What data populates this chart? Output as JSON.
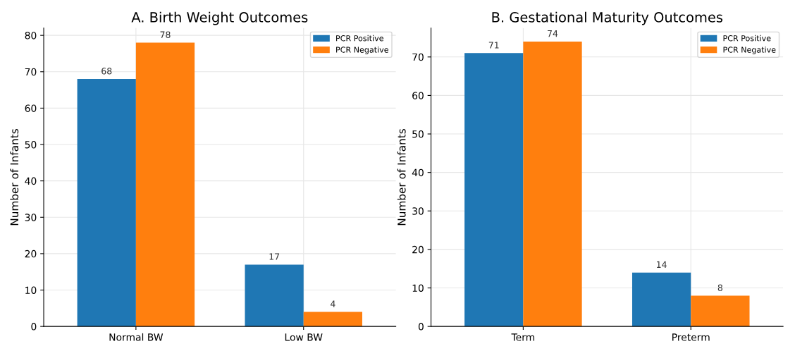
{
  "chart_data": [
    {
      "type": "bar",
      "title": "A. Birth Weight Outcomes",
      "ylabel": "Number of Infants",
      "categories": [
        "Normal BW",
        "Low BW"
      ],
      "series": [
        {
          "name": "PCR Positive",
          "color": "#1f77b4",
          "values": [
            68,
            17
          ]
        },
        {
          "name": "PCR Negative",
          "color": "#ff7f0e",
          "values": [
            78,
            4
          ]
        }
      ],
      "ylim": [
        0,
        82
      ],
      "yticks": [
        0,
        10,
        20,
        30,
        40,
        50,
        60,
        70,
        80
      ],
      "grid": true,
      "legend": "top right",
      "data_labels": true
    },
    {
      "type": "bar",
      "title": "B. Gestational Maturity Outcomes",
      "ylabel": "Number of Infants",
      "categories": [
        "Term",
        "Preterm"
      ],
      "series": [
        {
          "name": "PCR Positive",
          "color": "#1f77b4",
          "values": [
            71,
            14
          ]
        },
        {
          "name": "PCR Negative",
          "color": "#ff7f0e",
          "values": [
            74,
            8
          ]
        }
      ],
      "ylim": [
        0,
        77.5
      ],
      "yticks": [
        0,
        10,
        20,
        30,
        40,
        50,
        60,
        70
      ],
      "grid": true,
      "legend": "top right",
      "data_labels": true
    }
  ]
}
